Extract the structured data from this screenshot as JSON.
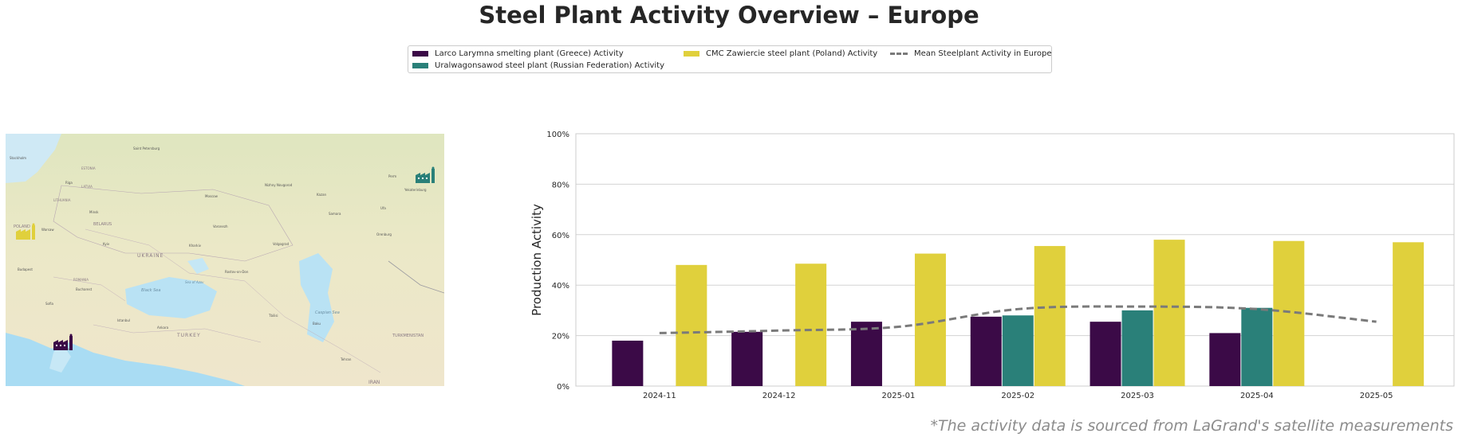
{
  "title": "Steel Plant Activity Overview – Europe",
  "legend": [
    {
      "label": "Larco Larymna smelting plant (Greece) Activity",
      "color": "#3b0a47",
      "kind": "bar"
    },
    {
      "label": "Uralwagonsawod steel plant (Russian Federation) Activity",
      "color": "#2a8079",
      "kind": "bar"
    },
    {
      "label": "CMC Zawiercie steel plant (Poland) Activity",
      "color": "#e0d03c",
      "kind": "bar"
    },
    {
      "label": "Mean Steelplant Activity in Europe",
      "color": "#7a7a7a",
      "kind": "line"
    }
  ],
  "map": {
    "labels": {
      "sea_black": "Black Sea",
      "sea_caspian": "Caspian Sea",
      "sea_azov": "Sea of Azov",
      "country_ukraine": "UKRAINE",
      "country_belarus": "BELARUS",
      "country_poland": "POLAND",
      "country_turkey": "TURKEY",
      "country_iran": "IRAN",
      "country_turkmenistan": "TURKMENISTAN",
      "country_latvia": "LATVIA",
      "country_lithuania": "LITHUANIA",
      "country_estonia": "ESTONIA",
      "country_romania": "ROMANIA",
      "city_moscow": "Moscow",
      "city_kyiv": "Kyiv",
      "city_minsk": "Minsk",
      "city_warsaw": "Warsaw",
      "city_istanbul": "Istanbul",
      "city_ankara": "Ankara",
      "city_kazan": "Kazan",
      "city_perm": "Perm",
      "city_riga": "Riga",
      "city_stockholm": "Stockholm",
      "city_saint_petersburg": "Saint Petersburg",
      "city_volgograd": "Volgograd",
      "city_samara": "Samara",
      "city_baku": "Baku",
      "city_tbilisi": "Tbilisi",
      "city_bucharest": "Bucharest",
      "city_sofia": "Sofia",
      "city_budapest": "Budapest",
      "city_athens": "Athens",
      "city_tehran": "Tehran",
      "city_ufa": "Ufa",
      "city_orenburg": "Orenburg",
      "city_kharkiv": "Kharkiv",
      "city_rostov": "Rostov-on-Don",
      "city_nizhny": "Nizhny Novgorod",
      "city_yekaterinburg": "Yekaterinburg",
      "city_voronezh": "Voronezh"
    }
  },
  "chart_data": {
    "type": "bar",
    "categories": [
      "2024-11",
      "2024-12",
      "2025-01",
      "2025-02",
      "2025-03",
      "2025-04",
      "2025-05"
    ],
    "series": [
      {
        "name": "Larco Larymna smelting plant (Greece) Activity",
        "color": "#3b0a47",
        "values": [
          18,
          21.5,
          25.5,
          27.5,
          25.5,
          21,
          null
        ]
      },
      {
        "name": "Uralwagonsawod steel plant (Russian Federation) Activity",
        "color": "#2a8079",
        "values": [
          null,
          null,
          null,
          28,
          30,
          31,
          null
        ]
      },
      {
        "name": "CMC Zawiercie steel plant (Poland) Activity",
        "color": "#e0d03c",
        "values": [
          48,
          48.5,
          52.5,
          55.5,
          58,
          57.5,
          57
        ]
      }
    ],
    "mean_line": {
      "name": "Mean Steelplant Activity in Europe",
      "color": "#7a7a7a",
      "values": [
        21,
        22,
        23.5,
        30.5,
        31.5,
        30.5,
        25.5
      ]
    },
    "ylabel": "Production Activity",
    "xlabel": "",
    "ylim": [
      0,
      100
    ],
    "yticks": [
      "0%",
      "20%",
      "40%",
      "60%",
      "80%",
      "100%"
    ],
    "ytick_values": [
      0,
      20,
      40,
      60,
      80,
      100
    ],
    "grid": true
  },
  "footer": {
    "source": "*The activity data is sourced from LaGrand's satellite measurements"
  }
}
